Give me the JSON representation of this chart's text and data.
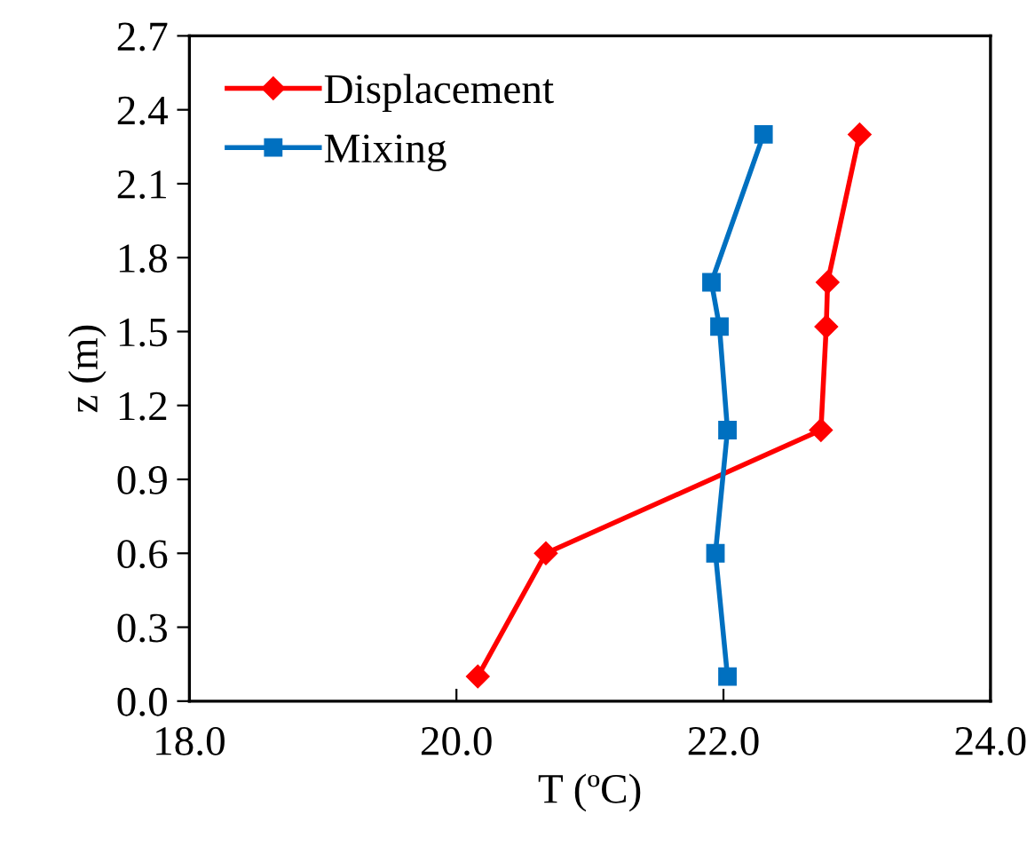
{
  "chart_data": {
    "type": "line",
    "xlabel": "T (ºC)",
    "ylabel": "z (m)",
    "xlim": [
      18,
      24
    ],
    "xticks": [
      {
        "value": 18,
        "label": "18.0"
      },
      {
        "value": 20,
        "label": "20.0"
      },
      {
        "value": 22,
        "label": "22.0"
      },
      {
        "value": 24,
        "label": "24.0"
      }
    ],
    "ylim": [
      0,
      2.7
    ],
    "yticks": [
      {
        "value": 0,
        "label": "0.0"
      },
      0.3,
      0.6,
      0.9,
      1.2,
      1.5,
      1.8,
      2.1,
      2.4,
      2.7
    ],
    "grid": false,
    "legend": "top left",
    "line_style": "solid",
    "series": [
      {
        "name": "Displacement",
        "color": "#ff0000",
        "marker": "diamond",
        "x": [
          20.16,
          20.67,
          22.73,
          22.77,
          22.78,
          23.02
        ],
        "values": [
          0.1,
          0.6,
          1.1,
          1.52,
          1.7,
          2.3
        ]
      },
      {
        "name": "Mixing",
        "color": "#0070c0",
        "marker": "square",
        "x": [
          22.03,
          21.94,
          22.03,
          21.97,
          21.91,
          22.3
        ],
        "values": [
          0.1,
          0.6,
          1.1,
          1.52,
          1.7,
          2.3
        ]
      }
    ]
  }
}
